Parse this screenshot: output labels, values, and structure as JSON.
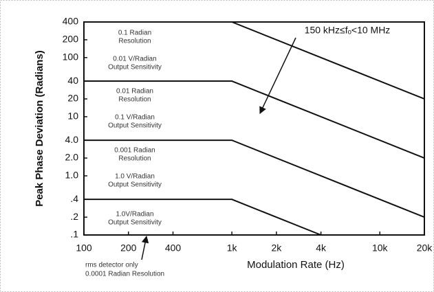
{
  "chart_data": {
    "type": "line",
    "xlabel": "Modulation Rate (Hz)",
    "ylabel": "Peak Phase Deviation (Radians)",
    "xscale": "log",
    "yscale": "log",
    "xlim": [
      100,
      20000
    ],
    "ylim": [
      0.1,
      400
    ],
    "xticks": [
      100,
      200,
      400,
      {
        "value": 1000,
        "label": "1k"
      },
      {
        "value": 2000,
        "label": "2k"
      },
      {
        "value": 4000,
        "label": "4k"
      },
      {
        "value": 10000,
        "label": "10k"
      },
      {
        "value": 20000,
        "label": "20k"
      }
    ],
    "yticks": [
      400,
      200,
      100,
      40,
      20,
      10,
      {
        "value": 4,
        "label": "4.0"
      },
      {
        "value": 2,
        "label": "2.0"
      },
      {
        "value": 1,
        "label": "1.0"
      },
      {
        "value": 0.4,
        "label": ".4"
      },
      {
        "value": 0.2,
        "label": ".2"
      },
      {
        "value": 0.1,
        "label": ".1"
      }
    ],
    "color": "#111111",
    "series": [
      {
        "x": [
          100,
          1000,
          20000
        ],
        "values": [
          400,
          400,
          20
        ]
      },
      {
        "x": [
          100,
          1000,
          20000
        ],
        "values": [
          40,
          40,
          2
        ]
      },
      {
        "x": [
          100,
          1000,
          20000
        ],
        "values": [
          4,
          4,
          0.2
        ]
      },
      {
        "x": [
          100,
          1000,
          4000
        ],
        "values": [
          0.4,
          0.4,
          0.1
        ]
      }
    ],
    "annotations": [
      "0.1 Radian",
      "Resolution",
      "0.01 V/Radian",
      "Output Sensitivity",
      "0.01 Radian",
      "Resolution",
      "0.1 V/Radian",
      "Output Sensitivity",
      "0.001 Radian",
      "Resolution",
      "1.0 V/Radian",
      "Output Sensitivity",
      "1.0V/Radian",
      "Output Sensitivity",
      "rms detector only",
      "0.0001 Radian Resolution",
      "150 kHz≤fₒ<10 MHz"
    ]
  }
}
